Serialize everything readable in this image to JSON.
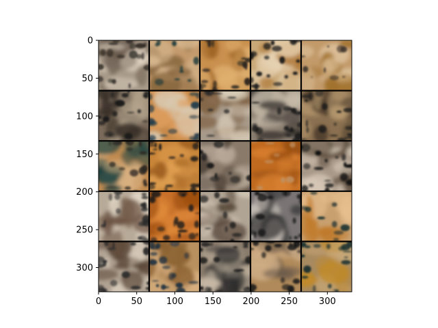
{
  "figure": {
    "type": "image-grid",
    "xaxis": {
      "ticks": [
        0,
        50,
        100,
        150,
        200,
        250,
        300
      ],
      "range": [
        0,
        332
      ]
    },
    "yaxis": {
      "ticks": [
        0,
        50,
        100,
        150,
        200,
        250,
        300
      ],
      "range": [
        0,
        332
      ],
      "inverted": true
    },
    "grid": {
      "rows": 5,
      "cols": 5,
      "separator_color": "#000000"
    },
    "tiles": [
      {
        "base": "#a89a88",
        "accents": [
          "#e0d4c2",
          "#6a5c4e",
          "#2a2520"
        ],
        "dark_edges": true
      },
      {
        "base": "#c39a6c",
        "accents": [
          "#d9b890",
          "#8a6840",
          "#1e3a3a"
        ],
        "dark_edges": false
      },
      {
        "base": "#c9904e",
        "accents": [
          "#e0b070",
          "#9a6020",
          "#2a2520"
        ],
        "dark_edges": true
      },
      {
        "base": "#c9a878",
        "accents": [
          "#e8d4b4",
          "#b07a3a",
          "#1a1a1a"
        ],
        "dark_edges": true
      },
      {
        "base": "#c29a6a",
        "accents": [
          "#dcc09a",
          "#a0702a",
          "#3a3028"
        ],
        "dark_edges": false
      },
      {
        "base": "#7a6a5a",
        "accents": [
          "#b8a890",
          "#3a3028",
          "#1a1a1a"
        ],
        "dark_edges": true
      },
      {
        "base": "#c88a4a",
        "accents": [
          "#e0a060",
          "#d8c8b0",
          "#1e3a4a"
        ],
        "dark_edges": true
      },
      {
        "base": "#a89a8a",
        "accents": [
          "#d8ccb8",
          "#7a5a3a",
          "#2a2a2a"
        ],
        "dark_edges": false
      },
      {
        "base": "#8a7e70",
        "accents": [
          "#c8bcaa",
          "#3a3430",
          "#1a1a1a"
        ],
        "dark_edges": true
      },
      {
        "base": "#8a7050",
        "accents": [
          "#b89a70",
          "#4a3a2a",
          "#1a1a1a"
        ],
        "dark_edges": true
      },
      {
        "base": "#c08a50",
        "accents": [
          "#d8b080",
          "#1a4040",
          "#2a2520"
        ],
        "dark_edges": true
      },
      {
        "base": "#c9863a",
        "accents": [
          "#e0a050",
          "#a06020",
          "#1a1a1a"
        ],
        "dark_edges": true
      },
      {
        "base": "#8a7a6a",
        "accents": [
          "#b8a898",
          "#4a3e34",
          "#1a1a1a"
        ],
        "dark_edges": false
      },
      {
        "base": "#c06a20",
        "accents": [
          "#d88030",
          "#9a5010",
          "#c09060"
        ],
        "dark_edges": false
      },
      {
        "base": "#a89888",
        "accents": [
          "#d8cab8",
          "#5a4a3a",
          "#101010"
        ],
        "dark_edges": true
      },
      {
        "base": "#b8aa98",
        "accents": [
          "#e0d4c4",
          "#6a5040",
          "#2a2a2a"
        ],
        "dark_edges": true
      },
      {
        "base": "#c8702a",
        "accents": [
          "#e08a3a",
          "#a05010",
          "#1a1a1a"
        ],
        "dark_edges": true
      },
      {
        "base": "#b0a494",
        "accents": [
          "#dccfbe",
          "#4a3a2e",
          "#1a1a1a"
        ],
        "dark_edges": false
      },
      {
        "base": "#7a7474",
        "accents": [
          "#c8c0b8",
          "#3a3838",
          "#1a1a1a"
        ],
        "dark_edges": true
      },
      {
        "base": "#c8a070",
        "accents": [
          "#e8c090",
          "#c07a2a",
          "#1a3030"
        ],
        "dark_edges": false
      },
      {
        "base": "#b0a292",
        "accents": [
          "#d8ccbc",
          "#5a4636",
          "#2a2a2a"
        ],
        "dark_edges": true
      },
      {
        "base": "#b89060",
        "accents": [
          "#d8b080",
          "#8a6030",
          "#1e3040"
        ],
        "dark_edges": true
      },
      {
        "base": "#8a7c6c",
        "accents": [
          "#c8baa6",
          "#2a2a2a",
          "#1a1a1a"
        ],
        "dark_edges": true
      },
      {
        "base": "#b08a5a",
        "accents": [
          "#d0b08a",
          "#6a5a4a",
          "#1a1a1a"
        ],
        "dark_edges": true
      },
      {
        "base": "#a88a60",
        "accents": [
          "#c8a878",
          "#c08a2a",
          "#1a3030"
        ],
        "dark_edges": true
      }
    ]
  }
}
